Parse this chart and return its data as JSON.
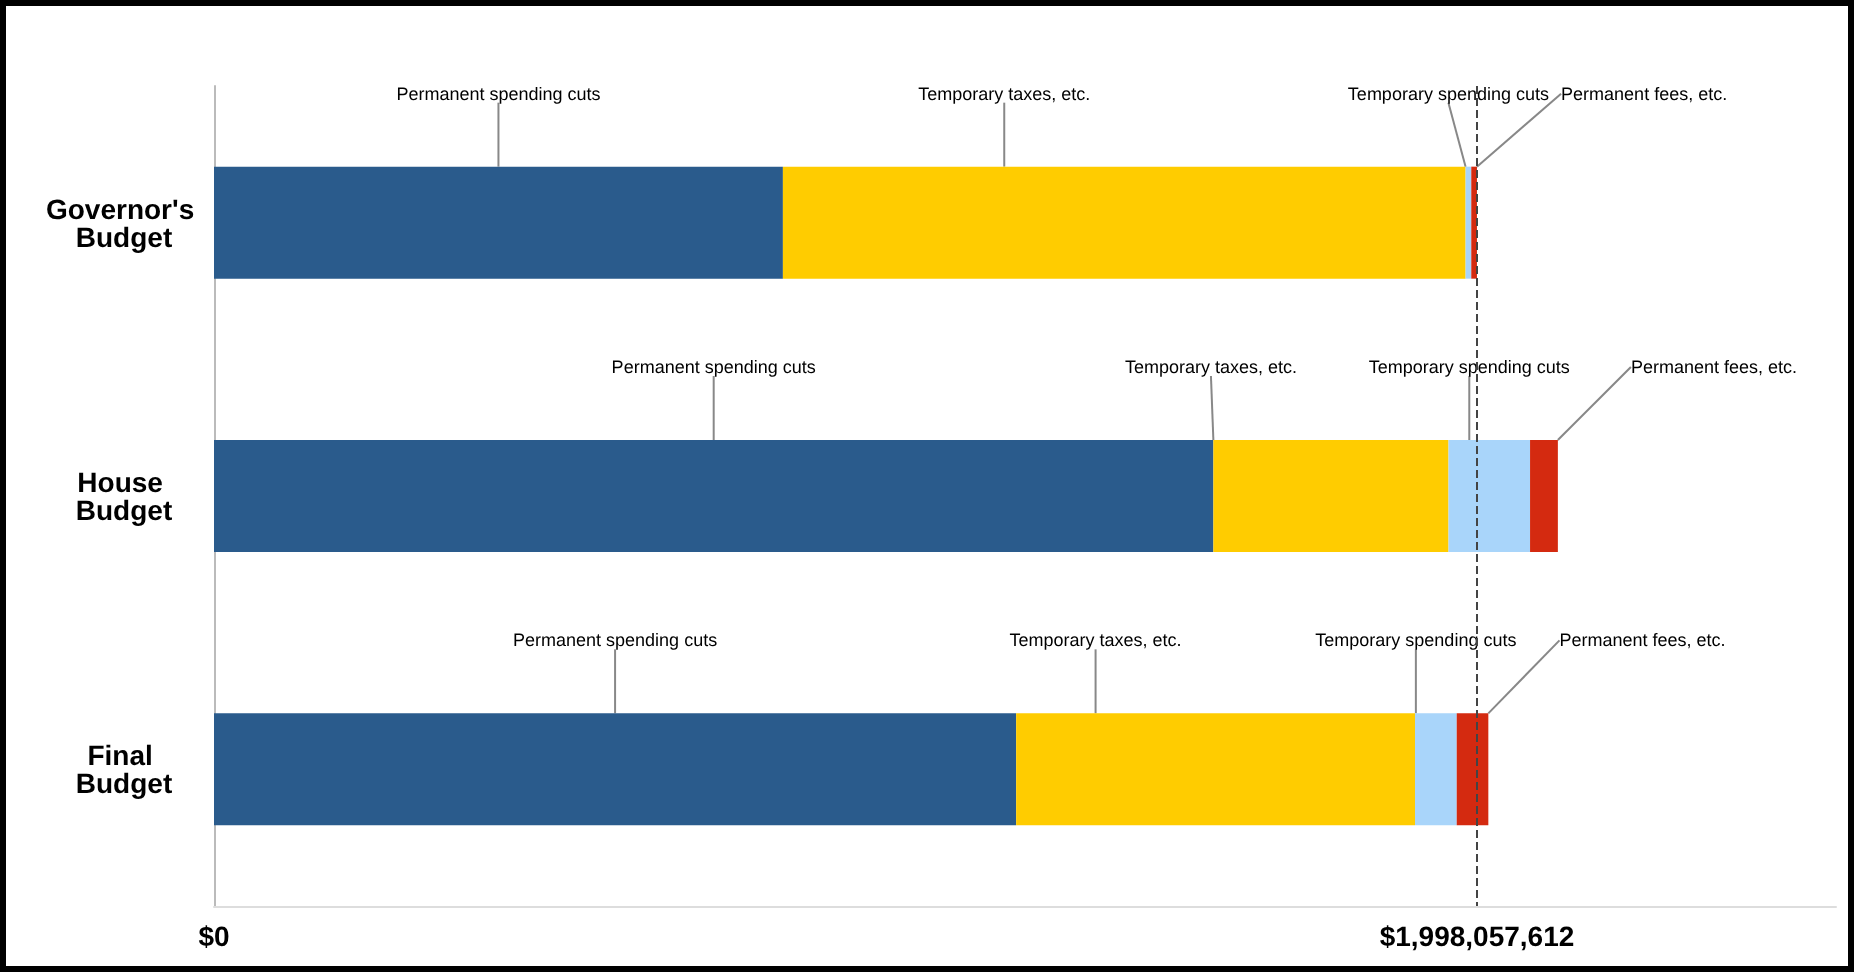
{
  "chart_data": {
    "type": "bar",
    "orientation": "horizontal",
    "stacked": true,
    "categories": [
      "Governor's Budget",
      "House Budget",
      "Final Budget"
    ],
    "series": [
      {
        "name": "Permanent spending cuts",
        "color": "#2a5b8c",
        "values": [
          900000000,
          1581000000,
          1269000000
        ]
      },
      {
        "name": "Temporary taxes, etc.",
        "color": "#ffcc00",
        "values": [
          1080000000,
          372000000,
          631000000
        ]
      },
      {
        "name": "Temporary spending cuts",
        "color": "#a9d5fa",
        "values": [
          9000000,
          129000000,
          66000000
        ]
      },
      {
        "name": "Permanent fees, etc.",
        "color": "#d42a10",
        "values": [
          9000000,
          44000000,
          50000000
        ]
      }
    ],
    "xlim": [
      0,
      2566000000
    ],
    "xticks": [
      {
        "value": 0,
        "label": "$0"
      },
      {
        "value": 1998057612,
        "label": "$1,998,057,612"
      }
    ],
    "ref_lines": [
      {
        "axis": "x",
        "value": 1998057612,
        "line_style": "dashed",
        "color": "#444444"
      }
    ],
    "grid": false,
    "legend": false
  }
}
